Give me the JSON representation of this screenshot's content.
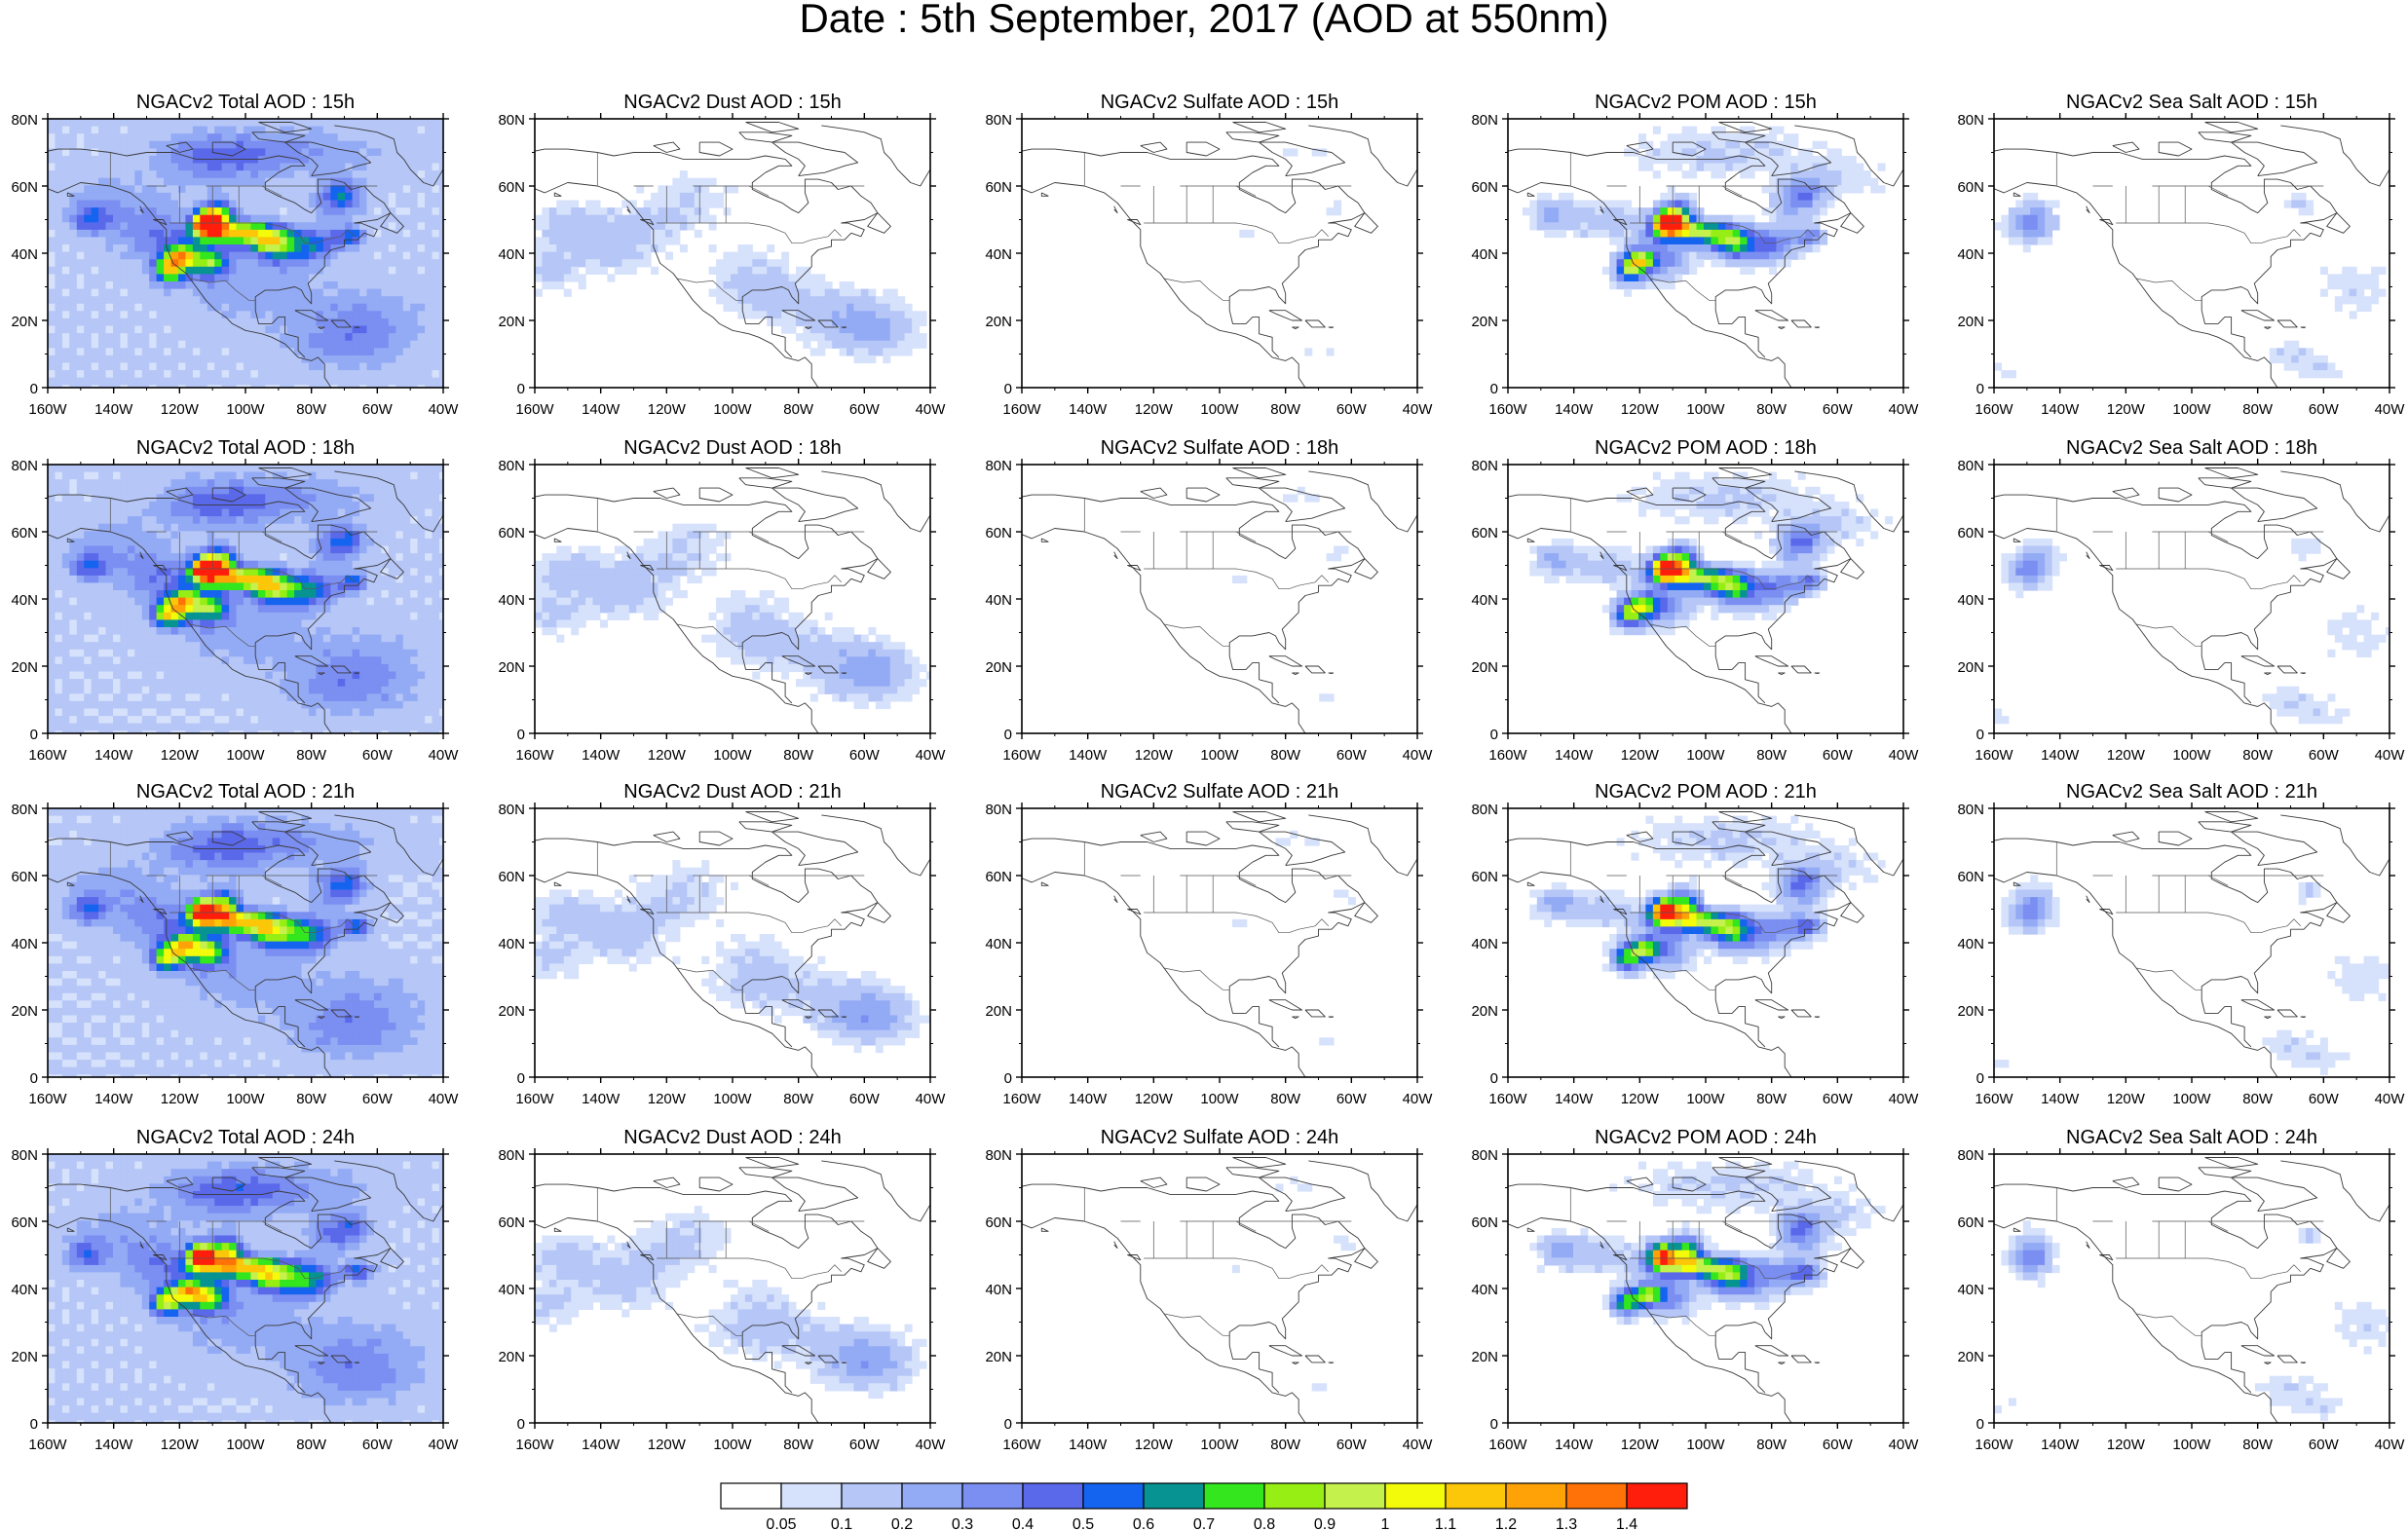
{
  "figure": {
    "title": "Date : 5th September, 2017 (AOD at 550nm)",
    "lat_ticks": [
      "80N",
      "60N",
      "40N",
      "20N",
      "0"
    ],
    "lon_ticks": [
      "160W",
      "140W",
      "120W",
      "100W",
      "80W",
      "60W",
      "40W"
    ],
    "rows": [
      {
        "hour": "15h",
        "panels": [
          {
            "species": "total",
            "title": "NGACv2 Total AOD : 15h"
          },
          {
            "species": "dust",
            "title": "NGACv2 Dust AOD : 15h"
          },
          {
            "species": "sulfate",
            "title": "NGACv2 Sulfate AOD : 15h"
          },
          {
            "species": "pom",
            "title": "NGACv2 POM AOD : 15h"
          },
          {
            "species": "seasalt",
            "title": "NGACv2 Sea Salt AOD : 15h"
          }
        ]
      },
      {
        "hour": "18h",
        "panels": [
          {
            "species": "total",
            "title": "NGACv2 Total AOD : 18h"
          },
          {
            "species": "dust",
            "title": "NGACv2 Dust AOD : 18h"
          },
          {
            "species": "sulfate",
            "title": "NGACv2 Sulfate AOD : 18h"
          },
          {
            "species": "pom",
            "title": "NGACv2 POM AOD : 18h"
          },
          {
            "species": "seasalt",
            "title": "NGACv2 Sea Salt AOD : 18h"
          }
        ]
      },
      {
        "hour": "21h",
        "panels": [
          {
            "species": "total",
            "title": "NGACv2 Total AOD : 21h"
          },
          {
            "species": "dust",
            "title": "NGACv2 Dust AOD : 21h"
          },
          {
            "species": "sulfate",
            "title": "NGACv2 Sulfate AOD : 21h"
          },
          {
            "species": "pom",
            "title": "NGACv2 POM AOD : 21h"
          },
          {
            "species": "seasalt",
            "title": "NGACv2 Sea Salt AOD : 21h"
          }
        ]
      },
      {
        "hour": "24h",
        "panels": [
          {
            "species": "total",
            "title": "NGACv2 Total AOD : 24h"
          },
          {
            "species": "dust",
            "title": "NGACv2 Dust AOD : 24h"
          },
          {
            "species": "sulfate",
            "title": "NGACv2 Sulfate AOD : 24h"
          },
          {
            "species": "pom",
            "title": "NGACv2 POM AOD : 24h"
          },
          {
            "species": "seasalt",
            "title": "NGACv2 Sea Salt  AOD : 24h"
          }
        ]
      }
    ],
    "colorbar": {
      "colors": [
        "#ffffff",
        "#d6e1fb",
        "#b5c6f7",
        "#93aaf5",
        "#7b8ef1",
        "#5a68ea",
        "#1464f0",
        "#079391",
        "#33e61d",
        "#97ee14",
        "#c4f14c",
        "#f3fb0a",
        "#fdc709",
        "#fea208",
        "#fe7208",
        "#ff1e0b"
      ],
      "labels": [
        "0.05",
        "0.1",
        "0.2",
        "0.3",
        "0.4",
        "0.5",
        "0.6",
        "0.7",
        "0.8",
        "0.9",
        "1",
        "1.1",
        "1.2",
        "1.3",
        "1.4"
      ]
    }
  }
}
